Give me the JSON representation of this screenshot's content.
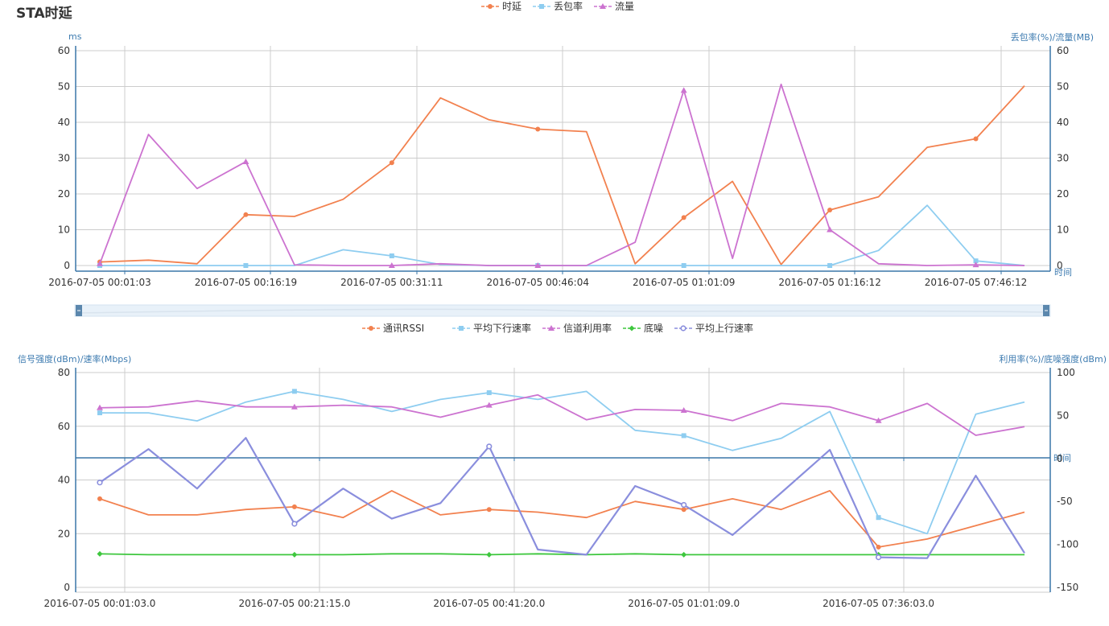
{
  "page": {
    "title": "STA时延"
  },
  "colors": {
    "grid": "#cccccc",
    "axis": "#3a77a8",
    "zoom_bg": "#e8f1f9",
    "zoom_handle": "#5b87ad",
    "ylabel": "#3d7bb0"
  },
  "zoom": {
    "start_pct": 0,
    "end_pct": 100
  },
  "chart_data": [
    {
      "type": "line",
      "title": "STA时延",
      "xlabel": "时间",
      "ylabel": "ms",
      "ylabel_right": "丢包率(%)/流量(MB)",
      "ylim": [
        0,
        60
      ],
      "ylim_right": [
        0,
        60
      ],
      "yticks": [
        60,
        50,
        40,
        30,
        20,
        10,
        0
      ],
      "yticks_right": [
        60,
        50,
        40,
        30,
        20,
        10,
        0
      ],
      "grid": true,
      "legend_position": "top-center",
      "x_count": 20,
      "x_tick_labels": [
        {
          "index": 0,
          "label": "2016-07-05 00:01:03"
        },
        {
          "index": 3,
          "label": "2016-07-05 00:16:19"
        },
        {
          "index": 6,
          "label": "2016-07-05 00:31:11"
        },
        {
          "index": 9,
          "label": "2016-07-05 00:46:04"
        },
        {
          "index": 12,
          "label": "2016-07-05 01:01:09"
        },
        {
          "index": 15,
          "label": "2016-07-05 01:16:12"
        },
        {
          "index": 18,
          "label": "2016-07-05 07:46:12"
        }
      ],
      "series": [
        {
          "name": "时延",
          "color": "#f2814f",
          "marker": "circle",
          "axis": "left",
          "values": [
            1,
            1.5,
            0.5,
            14.2,
            13.7,
            18.5,
            28.7,
            46.8,
            40.7,
            38.1,
            37.4,
            0.5,
            13.4,
            23.5,
            0.3,
            15.5,
            19.2,
            33,
            35.4,
            50.2
          ],
          "marked": [
            0,
            3,
            6,
            9,
            12,
            15,
            18
          ]
        },
        {
          "name": "丢包率",
          "color": "#8ecdf0",
          "marker": "square",
          "axis": "right",
          "values": [
            0,
            0,
            0,
            0,
            0,
            4.4,
            2.7,
            0.3,
            0,
            0,
            0,
            0,
            0,
            0,
            0,
            0,
            4.2,
            16.8,
            1.3,
            0
          ],
          "marked": [
            0,
            3,
            6,
            9,
            12,
            15,
            18
          ]
        },
        {
          "name": "流量",
          "color": "#cc73d0",
          "marker": "triangle",
          "axis": "right",
          "values": [
            0.5,
            36.6,
            21.5,
            29,
            0.2,
            0,
            0,
            0.5,
            0,
            0,
            0,
            6.5,
            48.9,
            2,
            50.6,
            10,
            0.5,
            0,
            0.2,
            0
          ],
          "marked": [
            0,
            3,
            6,
            9,
            12,
            15,
            18
          ]
        }
      ]
    },
    {
      "type": "line",
      "xlabel": "时间",
      "ylabel": "信号强度(dBm)/速率(Mbps)",
      "ylabel_right": "利用率(%)/底噪强度(dBm)",
      "ylim": [
        0,
        80
      ],
      "ylim_right": [
        -150,
        100
      ],
      "yticks": [
        80,
        60,
        40,
        20,
        0
      ],
      "yticks_right": [
        100,
        50,
        0,
        -50,
        -100,
        -150
      ],
      "grid": true,
      "legend_position": "top-center",
      "x_count": 20,
      "x_tick_labels": [
        {
          "index": 0,
          "label": "2016-07-05 00:01:03.0"
        },
        {
          "index": 4,
          "label": "2016-07-05 00:21:15.0"
        },
        {
          "index": 8,
          "label": "2016-07-05 00:41:20.0"
        },
        {
          "index": 12,
          "label": "2016-07-05 01:01:09.0"
        },
        {
          "index": 16,
          "label": "2016-07-05 07:36:03.0"
        }
      ],
      "series": [
        {
          "name": "通讯RSSI",
          "color": "#f2814f",
          "marker": "circle",
          "axis": "left",
          "values": [
            33,
            27,
            27,
            29,
            30,
            26,
            36,
            27,
            29,
            28,
            26,
            32,
            29,
            33,
            29,
            36,
            15,
            18,
            23,
            28
          ],
          "marked": [
            0,
            4,
            8,
            12,
            16
          ]
        },
        {
          "name": "平均下行速率",
          "color": "#8ecdf0",
          "marker": "square",
          "axis": "left",
          "values": [
            65,
            65,
            62,
            69,
            73,
            70,
            65.5,
            70,
            72.5,
            70,
            73,
            58.5,
            56.5,
            51,
            55.5,
            65.5,
            26,
            20,
            64.5,
            69
          ],
          "marked": [
            0,
            4,
            8,
            12,
            16
          ]
        },
        {
          "name": "信道利用率",
          "color": "#cc73d0",
          "marker": "triangle",
          "axis": "right",
          "values": [
            59,
            60,
            67,
            60,
            60,
            62,
            60,
            48,
            62,
            74,
            45,
            57,
            56,
            44,
            64,
            60,
            44,
            64,
            27,
            37
          ],
          "marked": [
            0,
            4,
            8,
            12,
            16
          ]
        },
        {
          "name": "底噪",
          "color": "#3ec73e",
          "marker": "diamond",
          "axis": "right",
          "values": [
            -111,
            -112,
            -112,
            -112,
            -112,
            -112,
            -111,
            -111,
            -112,
            -111,
            -112,
            -111,
            -112,
            -112,
            -112,
            -112,
            -112,
            -112,
            -112,
            -112
          ],
          "marked": [
            0,
            4,
            8,
            12,
            16
          ]
        },
        {
          "name": "平均上行速率",
          "color": "#8a8edd",
          "marker": "hollow-circle",
          "axis": "right",
          "values": [
            -28,
            11,
            -35,
            24,
            -76,
            -35,
            -70,
            -52,
            14,
            -106,
            -112,
            -32,
            -54,
            -89,
            -40,
            10,
            -115,
            -116,
            -20,
            -110
          ],
          "marked": [
            0,
            4,
            8,
            12,
            16
          ]
        }
      ]
    }
  ]
}
